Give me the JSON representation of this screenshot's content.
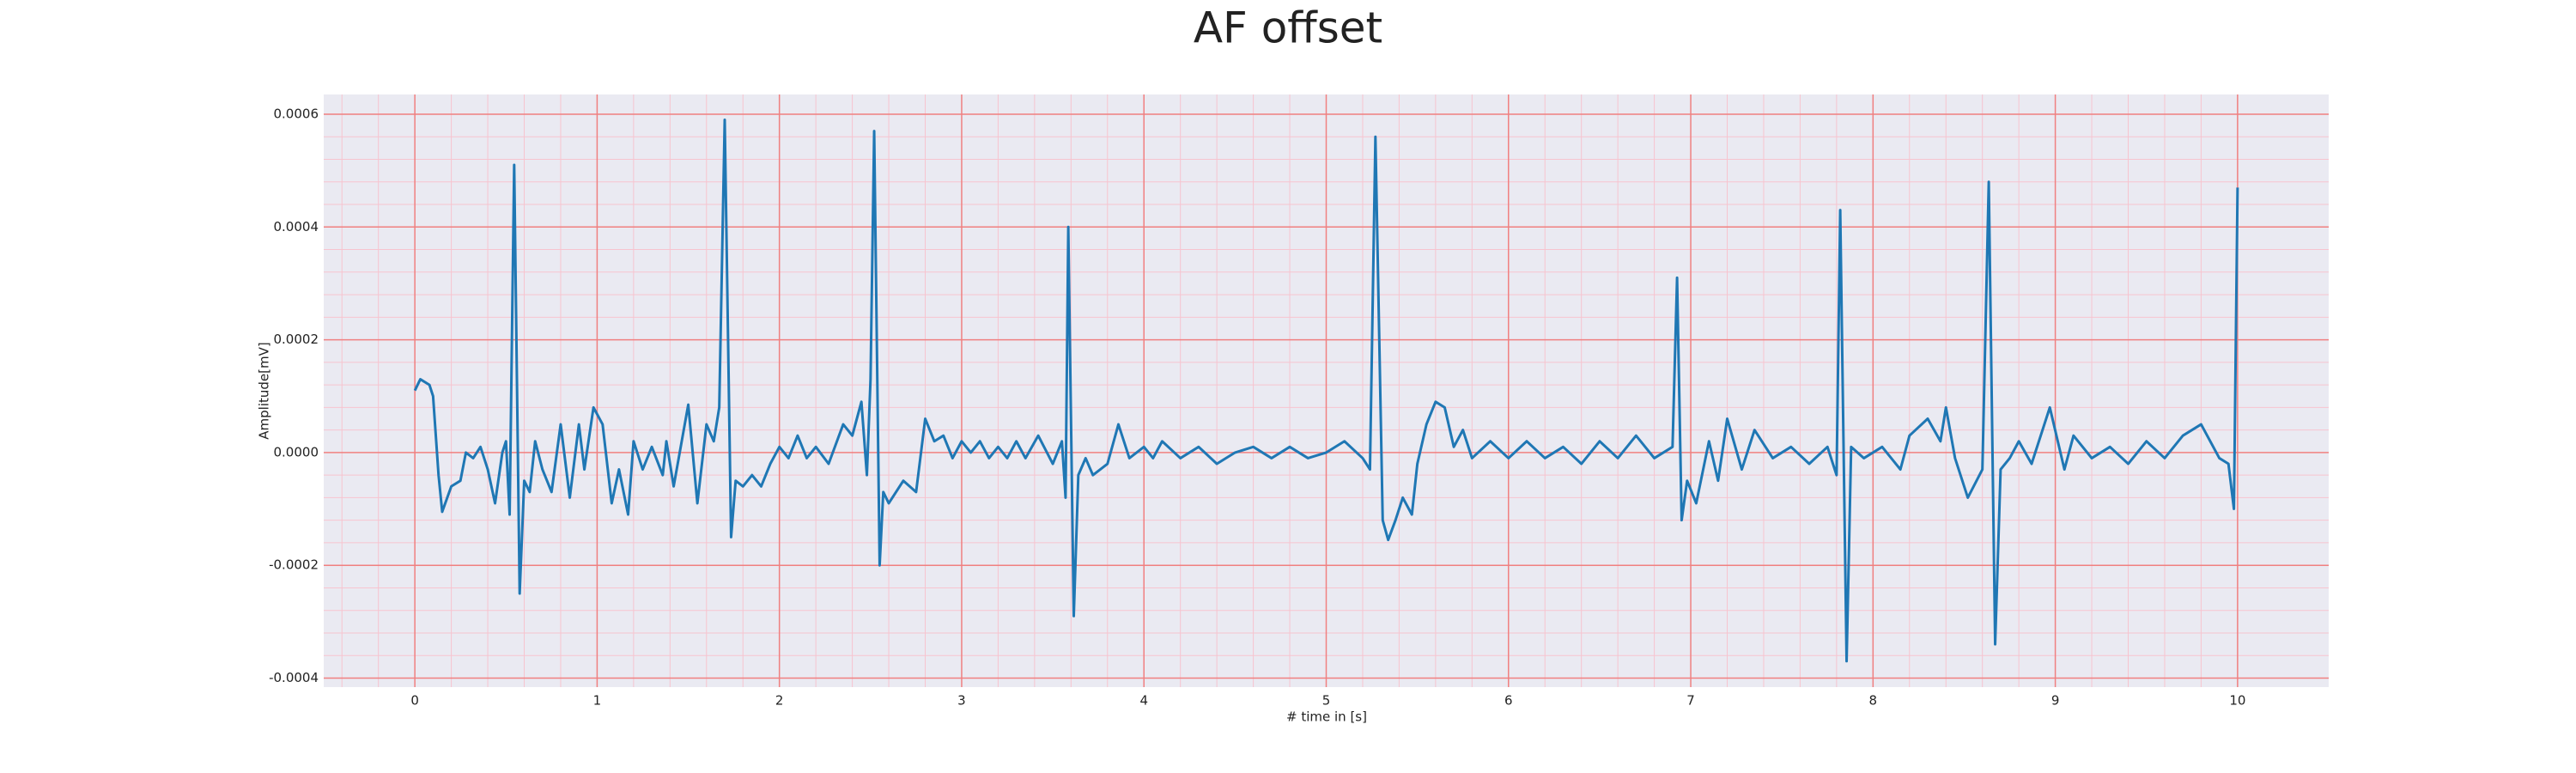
{
  "chart_data": {
    "type": "line",
    "title": "AF offset",
    "xlabel": "# time in [s]",
    "ylabel": "Amplitude[mV]",
    "color": "#1f77b4",
    "x": [
      0,
      0.03,
      0.08,
      0.1,
      0.13,
      0.15,
      0.2,
      0.25,
      0.28,
      0.32,
      0.36,
      0.4,
      0.44,
      0.48,
      0.5,
      0.52,
      0.545,
      0.575,
      0.6,
      0.63,
      0.66,
      0.7,
      0.75,
      0.8,
      0.85,
      0.9,
      0.93,
      0.98,
      1.03,
      1.08,
      1.12,
      1.17,
      1.2,
      1.25,
      1.3,
      1.36,
      1.38,
      1.42,
      1.5,
      1.55,
      1.6,
      1.64,
      1.67,
      1.7,
      1.735,
      1.76,
      1.8,
      1.85,
      1.9,
      1.95,
      2.0,
      2.05,
      2.1,
      2.15,
      2.2,
      2.27,
      2.35,
      2.4,
      2.45,
      2.48,
      2.5,
      2.52,
      2.55,
      2.57,
      2.6,
      2.68,
      2.75,
      2.8,
      2.85,
      2.9,
      2.95,
      3.0,
      3.05,
      3.1,
      3.15,
      3.2,
      3.25,
      3.3,
      3.35,
      3.42,
      3.5,
      3.55,
      3.57,
      3.585,
      3.615,
      3.64,
      3.68,
      3.72,
      3.8,
      3.86,
      3.92,
      4.0,
      4.05,
      4.1,
      4.2,
      4.3,
      4.4,
      4.5,
      4.6,
      4.7,
      4.8,
      4.9,
      5.0,
      5.1,
      5.2,
      5.24,
      5.27,
      5.31,
      5.34,
      5.38,
      5.42,
      5.47,
      5.5,
      5.55,
      5.6,
      5.65,
      5.7,
      5.75,
      5.8,
      5.9,
      6.0,
      6.1,
      6.2,
      6.3,
      6.4,
      6.5,
      6.6,
      6.7,
      6.8,
      6.9,
      6.925,
      6.95,
      6.98,
      7.03,
      7.1,
      7.15,
      7.2,
      7.28,
      7.35,
      7.45,
      7.55,
      7.65,
      7.75,
      7.8,
      7.82,
      7.855,
      7.88,
      7.95,
      8.05,
      8.15,
      8.2,
      8.3,
      8.37,
      8.4,
      8.45,
      8.52,
      8.6,
      8.635,
      8.67,
      8.7,
      8.75,
      8.8,
      8.87,
      8.97,
      9.05,
      9.1,
      9.2,
      9.3,
      9.4,
      9.5,
      9.6,
      9.7,
      9.8,
      9.9,
      9.95,
      9.98,
      10.0
    ],
    "values": [
      0.00011,
      0.00013,
      0.00012,
      0.0001,
      -4e-05,
      -0.000105,
      -6e-05,
      -5e-05,
      0,
      -1e-05,
      1e-05,
      -3e-05,
      -9e-05,
      0,
      2e-05,
      -0.00011,
      0.00051,
      -0.00025,
      -5e-05,
      -7e-05,
      2e-05,
      -3e-05,
      -7e-05,
      5e-05,
      -8e-05,
      5e-05,
      -3e-05,
      8e-05,
      5e-05,
      -9e-05,
      -3e-05,
      -0.00011,
      2e-05,
      -3e-05,
      1e-05,
      -4e-05,
      2e-05,
      -6e-05,
      8.5e-05,
      -9e-05,
      5e-05,
      2e-05,
      8e-05,
      0.00059,
      -0.00015,
      -5e-05,
      -6e-05,
      -4e-05,
      -6e-05,
      -2e-05,
      1e-05,
      -1e-05,
      3e-05,
      -1e-05,
      1e-05,
      -2e-05,
      5e-05,
      3e-05,
      9e-05,
      -4e-05,
      0.00013,
      0.00057,
      -0.0002,
      -7e-05,
      -9e-05,
      -5e-05,
      -7e-05,
      6e-05,
      2e-05,
      3e-05,
      -1e-05,
      2e-05,
      0,
      2e-05,
      -1e-05,
      1e-05,
      -1e-05,
      2e-05,
      -1e-05,
      3e-05,
      -2e-05,
      2e-05,
      -8e-05,
      0.0004,
      -0.00029,
      -4e-05,
      -1e-05,
      -4e-05,
      -2e-05,
      5e-05,
      -1e-05,
      1e-05,
      -1e-05,
      2e-05,
      -1e-05,
      1e-05,
      -2e-05,
      0,
      1e-05,
      -1e-05,
      1e-05,
      -1e-05,
      0,
      2e-05,
      -1e-05,
      -3e-05,
      0.00056,
      -0.00012,
      -0.000155,
      -0.00012,
      -8e-05,
      -0.00011,
      -2e-05,
      5e-05,
      9e-05,
      8e-05,
      1e-05,
      4e-05,
      -1e-05,
      2e-05,
      -1e-05,
      2e-05,
      -1e-05,
      1e-05,
      -2e-05,
      2e-05,
      -1e-05,
      3e-05,
      -1e-05,
      1e-05,
      0.00031,
      -0.00012,
      -5e-05,
      -9e-05,
      2e-05,
      -5e-05,
      6e-05,
      -3e-05,
      4e-05,
      -1e-05,
      1e-05,
      -2e-05,
      1e-05,
      -4e-05,
      0.00043,
      -0.00037,
      1e-05,
      -1e-05,
      1e-05,
      -3e-05,
      3e-05,
      6e-05,
      2e-05,
      8e-05,
      -1e-05,
      -8e-05,
      -3e-05,
      0.00048,
      -0.00034,
      -3e-05,
      -1e-05,
      2e-05,
      -2e-05,
      8e-05,
      -3e-05,
      3e-05,
      -1e-05,
      1e-05,
      -2e-05,
      2e-05,
      -1e-05,
      3e-05,
      5e-05,
      -1e-05,
      -2e-05,
      -0.0001,
      0.00047
    ],
    "xlim": [
      -0.5,
      10.5
    ],
    "ylim": [
      -0.000416,
      0.000635
    ],
    "xticks": [
      0,
      1,
      2,
      3,
      4,
      5,
      6,
      7,
      8,
      9,
      10
    ],
    "yticks": [
      {
        "value": -0.0004,
        "label": "-0.0004"
      },
      {
        "value": -0.0002,
        "label": "-0.0002"
      },
      {
        "value": 0,
        "label": "0.0000"
      },
      {
        "value": 0.0002,
        "label": "0.0002"
      },
      {
        "value": 0.0004,
        "label": "0.0004"
      },
      {
        "value": 0.0006,
        "label": "0.0006"
      }
    ],
    "grid": true,
    "minor_grid": true
  }
}
